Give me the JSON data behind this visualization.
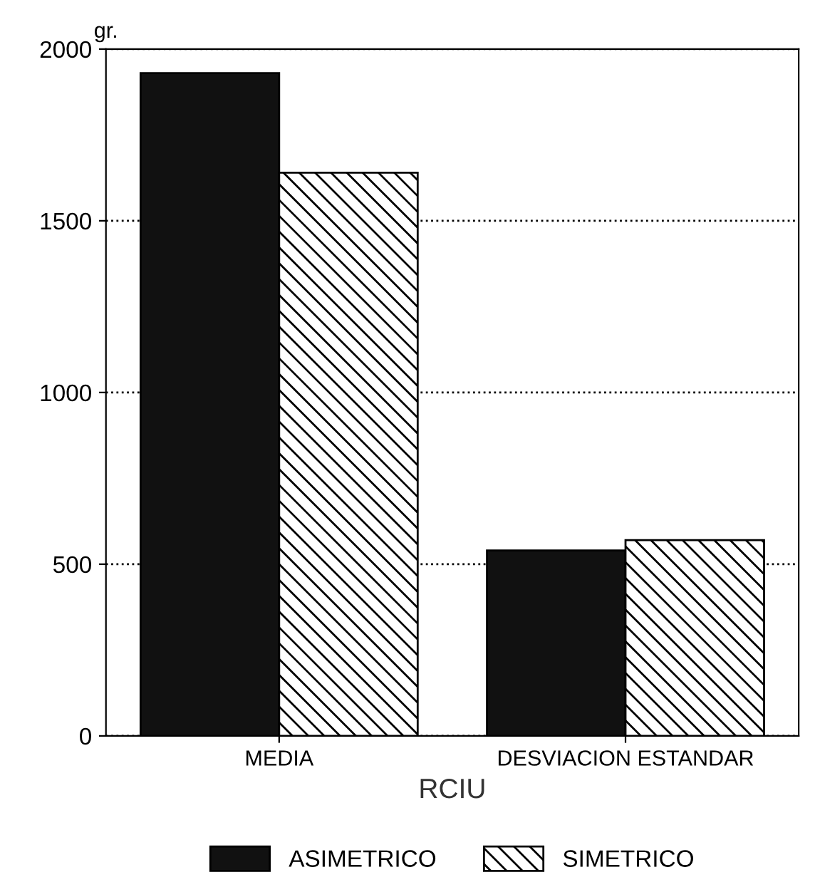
{
  "chart_data": {
    "type": "bar",
    "ylabel": "gr.",
    "xlabel": "RCIU",
    "categories": [
      "MEDIA",
      "DESVIACION ESTANDAR"
    ],
    "series": [
      {
        "name": "ASIMETRICO",
        "color": "#111111",
        "values": [
          1930,
          540
        ]
      },
      {
        "name": "SIMETRICO",
        "color": "#000000",
        "values": [
          1640,
          570
        ]
      }
    ],
    "ylim": [
      0,
      2000
    ],
    "yticks": [
      0,
      500,
      1000,
      1500,
      2000
    ],
    "grid": "y",
    "legend": "bottom"
  }
}
